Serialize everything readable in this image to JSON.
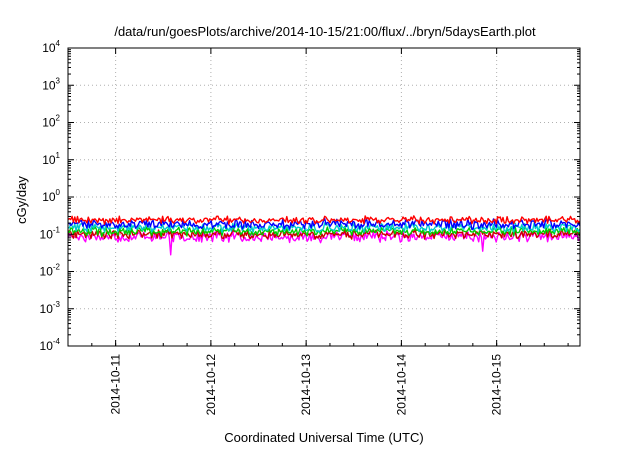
{
  "chart_data": {
    "type": "line",
    "title": "/data/run/goesPlots/archive/2014-10-15/21:00/flux/../bryn/5daysEarth.plot",
    "xlabel": "Coordinated Universal Time (UTC)",
    "ylabel": "cGy/day",
    "yscale": "log",
    "ylim": [
      0.0001,
      10000
    ],
    "xlim": [
      "2014-10-10 12:00",
      "2014-10-15 21:00"
    ],
    "grid": true,
    "x_ticks": [
      "2014-10-11",
      "2014-10-12",
      "2014-10-13",
      "2014-10-14",
      "2014-10-15"
    ],
    "y_ticks": [
      {
        "base": "10",
        "exp": "-4",
        "value": 0.0001
      },
      {
        "base": "10",
        "exp": "-3",
        "value": 0.001
      },
      {
        "base": "10",
        "exp": "-2",
        "value": 0.01
      },
      {
        "base": "10",
        "exp": "-1",
        "value": 0.1
      },
      {
        "base": "10",
        "exp": "0",
        "value": 1
      },
      {
        "base": "10",
        "exp": "1",
        "value": 10
      },
      {
        "base": "10",
        "exp": "2",
        "value": 100
      },
      {
        "base": "10",
        "exp": "3",
        "value": 1000
      },
      {
        "base": "10",
        "exp": "4",
        "value": 10000
      }
    ],
    "series": [
      {
        "color": "#ff00ff",
        "baseline": 0.085,
        "spread": 0.22,
        "dips": [
          [
            0.2,
            0.028
          ],
          [
            0.81,
            0.035
          ]
        ]
      },
      {
        "color": "#cc0000",
        "baseline": 0.1,
        "spread": 0.16,
        "dips": []
      },
      {
        "color": "#00cc00",
        "baseline": 0.12,
        "spread": 0.15,
        "dips": []
      },
      {
        "color": "#00cccc",
        "baseline": 0.15,
        "spread": 0.15,
        "dips": []
      },
      {
        "color": "#0000ff",
        "baseline": 0.19,
        "spread": 0.2,
        "dips": []
      },
      {
        "color": "#ff0000",
        "baseline": 0.24,
        "spread": 0.12,
        "dips": []
      }
    ]
  }
}
